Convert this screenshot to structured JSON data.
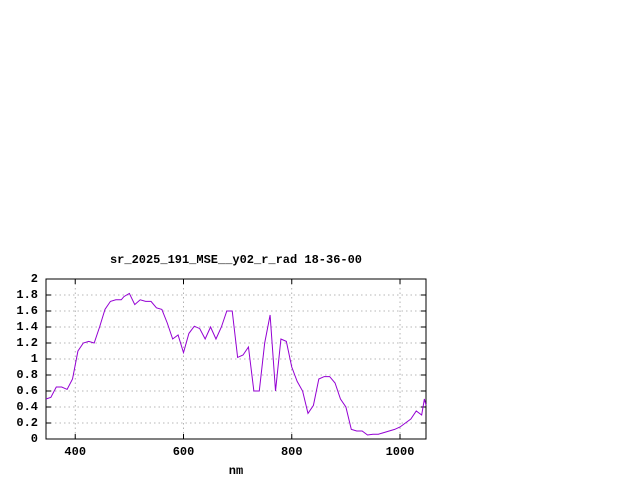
{
  "chart_data": {
    "type": "line",
    "title": "sr_2025_191_MSE__y02_r_rad 18-36-00",
    "xlabel": "nm",
    "x": [
      346,
      355,
      365,
      375,
      385,
      395,
      405,
      415,
      425,
      435,
      445,
      455,
      465,
      475,
      485,
      490,
      500,
      510,
      520,
      530,
      540,
      550,
      560,
      570,
      580,
      590,
      600,
      610,
      620,
      630,
      640,
      650,
      660,
      670,
      680,
      690,
      700,
      710,
      720,
      730,
      740,
      750,
      760,
      770,
      780,
      790,
      800,
      810,
      820,
      830,
      840,
      850,
      860,
      870,
      880,
      890,
      900,
      910,
      920,
      930,
      940,
      950,
      960,
      970,
      980,
      990,
      1000,
      1010,
      1020,
      1030,
      1040,
      1045,
      1048
    ],
    "series": [
      {
        "color": "#9400d3",
        "values": [
          0.5,
          0.52,
          0.65,
          0.65,
          0.62,
          0.75,
          1.1,
          1.2,
          1.22,
          1.2,
          1.4,
          1.62,
          1.72,
          1.74,
          1.74,
          1.78,
          1.82,
          1.68,
          1.74,
          1.72,
          1.72,
          1.64,
          1.62,
          1.45,
          1.25,
          1.3,
          1.08,
          1.32,
          1.41,
          1.38,
          1.25,
          1.4,
          1.25,
          1.4,
          1.6,
          1.6,
          1.02,
          1.05,
          1.15,
          0.6,
          0.6,
          1.2,
          1.55,
          0.6,
          1.25,
          1.22,
          0.9,
          0.72,
          0.6,
          0.32,
          0.42,
          0.75,
          0.78,
          0.78,
          0.7,
          0.5,
          0.4,
          0.12,
          0.1,
          0.1,
          0.05,
          0.06,
          0.06,
          0.08,
          0.1,
          0.12,
          0.15,
          0.2,
          0.25,
          0.35,
          0.3,
          0.5,
          0.42
        ]
      }
    ],
    "xlim": [
      346,
      1048
    ],
    "ylim": [
      0,
      2
    ],
    "xticks": [
      400,
      600,
      800,
      1000
    ],
    "yticks": [
      0,
      0.2,
      0.4,
      0.6,
      0.8,
      1,
      1.2,
      1.4,
      1.6,
      1.8,
      2
    ],
    "grid": true
  }
}
